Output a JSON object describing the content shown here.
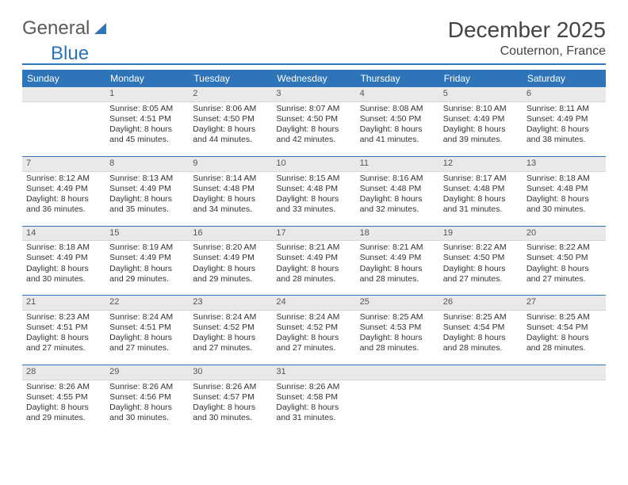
{
  "logo": {
    "text1": "General",
    "text2": "Blue"
  },
  "header": {
    "title": "December 2025",
    "location": "Couternon, France"
  },
  "colors": {
    "accent": "#2d74b8",
    "daynum_bg": "#e9e9e9",
    "text": "#333333"
  },
  "weekdays": [
    "Sunday",
    "Monday",
    "Tuesday",
    "Wednesday",
    "Thursday",
    "Friday",
    "Saturday"
  ],
  "weeks": [
    [
      {
        "num": "",
        "lines": []
      },
      {
        "num": "1",
        "lines": [
          "Sunrise: 8:05 AM",
          "Sunset: 4:51 PM",
          "Daylight: 8 hours",
          "and 45 minutes."
        ]
      },
      {
        "num": "2",
        "lines": [
          "Sunrise: 8:06 AM",
          "Sunset: 4:50 PM",
          "Daylight: 8 hours",
          "and 44 minutes."
        ]
      },
      {
        "num": "3",
        "lines": [
          "Sunrise: 8:07 AM",
          "Sunset: 4:50 PM",
          "Daylight: 8 hours",
          "and 42 minutes."
        ]
      },
      {
        "num": "4",
        "lines": [
          "Sunrise: 8:08 AM",
          "Sunset: 4:50 PM",
          "Daylight: 8 hours",
          "and 41 minutes."
        ]
      },
      {
        "num": "5",
        "lines": [
          "Sunrise: 8:10 AM",
          "Sunset: 4:49 PM",
          "Daylight: 8 hours",
          "and 39 minutes."
        ]
      },
      {
        "num": "6",
        "lines": [
          "Sunrise: 8:11 AM",
          "Sunset: 4:49 PM",
          "Daylight: 8 hours",
          "and 38 minutes."
        ]
      }
    ],
    [
      {
        "num": "7",
        "lines": [
          "Sunrise: 8:12 AM",
          "Sunset: 4:49 PM",
          "Daylight: 8 hours",
          "and 36 minutes."
        ]
      },
      {
        "num": "8",
        "lines": [
          "Sunrise: 8:13 AM",
          "Sunset: 4:49 PM",
          "Daylight: 8 hours",
          "and 35 minutes."
        ]
      },
      {
        "num": "9",
        "lines": [
          "Sunrise: 8:14 AM",
          "Sunset: 4:48 PM",
          "Daylight: 8 hours",
          "and 34 minutes."
        ]
      },
      {
        "num": "10",
        "lines": [
          "Sunrise: 8:15 AM",
          "Sunset: 4:48 PM",
          "Daylight: 8 hours",
          "and 33 minutes."
        ]
      },
      {
        "num": "11",
        "lines": [
          "Sunrise: 8:16 AM",
          "Sunset: 4:48 PM",
          "Daylight: 8 hours",
          "and 32 minutes."
        ]
      },
      {
        "num": "12",
        "lines": [
          "Sunrise: 8:17 AM",
          "Sunset: 4:48 PM",
          "Daylight: 8 hours",
          "and 31 minutes."
        ]
      },
      {
        "num": "13",
        "lines": [
          "Sunrise: 8:18 AM",
          "Sunset: 4:48 PM",
          "Daylight: 8 hours",
          "and 30 minutes."
        ]
      }
    ],
    [
      {
        "num": "14",
        "lines": [
          "Sunrise: 8:18 AM",
          "Sunset: 4:49 PM",
          "Daylight: 8 hours",
          "and 30 minutes."
        ]
      },
      {
        "num": "15",
        "lines": [
          "Sunrise: 8:19 AM",
          "Sunset: 4:49 PM",
          "Daylight: 8 hours",
          "and 29 minutes."
        ]
      },
      {
        "num": "16",
        "lines": [
          "Sunrise: 8:20 AM",
          "Sunset: 4:49 PM",
          "Daylight: 8 hours",
          "and 29 minutes."
        ]
      },
      {
        "num": "17",
        "lines": [
          "Sunrise: 8:21 AM",
          "Sunset: 4:49 PM",
          "Daylight: 8 hours",
          "and 28 minutes."
        ]
      },
      {
        "num": "18",
        "lines": [
          "Sunrise: 8:21 AM",
          "Sunset: 4:49 PM",
          "Daylight: 8 hours",
          "and 28 minutes."
        ]
      },
      {
        "num": "19",
        "lines": [
          "Sunrise: 8:22 AM",
          "Sunset: 4:50 PM",
          "Daylight: 8 hours",
          "and 27 minutes."
        ]
      },
      {
        "num": "20",
        "lines": [
          "Sunrise: 8:22 AM",
          "Sunset: 4:50 PM",
          "Daylight: 8 hours",
          "and 27 minutes."
        ]
      }
    ],
    [
      {
        "num": "21",
        "lines": [
          "Sunrise: 8:23 AM",
          "Sunset: 4:51 PM",
          "Daylight: 8 hours",
          "and 27 minutes."
        ]
      },
      {
        "num": "22",
        "lines": [
          "Sunrise: 8:24 AM",
          "Sunset: 4:51 PM",
          "Daylight: 8 hours",
          "and 27 minutes."
        ]
      },
      {
        "num": "23",
        "lines": [
          "Sunrise: 8:24 AM",
          "Sunset: 4:52 PM",
          "Daylight: 8 hours",
          "and 27 minutes."
        ]
      },
      {
        "num": "24",
        "lines": [
          "Sunrise: 8:24 AM",
          "Sunset: 4:52 PM",
          "Daylight: 8 hours",
          "and 27 minutes."
        ]
      },
      {
        "num": "25",
        "lines": [
          "Sunrise: 8:25 AM",
          "Sunset: 4:53 PM",
          "Daylight: 8 hours",
          "and 28 minutes."
        ]
      },
      {
        "num": "26",
        "lines": [
          "Sunrise: 8:25 AM",
          "Sunset: 4:54 PM",
          "Daylight: 8 hours",
          "and 28 minutes."
        ]
      },
      {
        "num": "27",
        "lines": [
          "Sunrise: 8:25 AM",
          "Sunset: 4:54 PM",
          "Daylight: 8 hours",
          "and 28 minutes."
        ]
      }
    ],
    [
      {
        "num": "28",
        "lines": [
          "Sunrise: 8:26 AM",
          "Sunset: 4:55 PM",
          "Daylight: 8 hours",
          "and 29 minutes."
        ]
      },
      {
        "num": "29",
        "lines": [
          "Sunrise: 8:26 AM",
          "Sunset: 4:56 PM",
          "Daylight: 8 hours",
          "and 30 minutes."
        ]
      },
      {
        "num": "30",
        "lines": [
          "Sunrise: 8:26 AM",
          "Sunset: 4:57 PM",
          "Daylight: 8 hours",
          "and 30 minutes."
        ]
      },
      {
        "num": "31",
        "lines": [
          "Sunrise: 8:26 AM",
          "Sunset: 4:58 PM",
          "Daylight: 8 hours",
          "and 31 minutes."
        ]
      },
      {
        "num": "",
        "lines": []
      },
      {
        "num": "",
        "lines": []
      },
      {
        "num": "",
        "lines": []
      }
    ]
  ]
}
